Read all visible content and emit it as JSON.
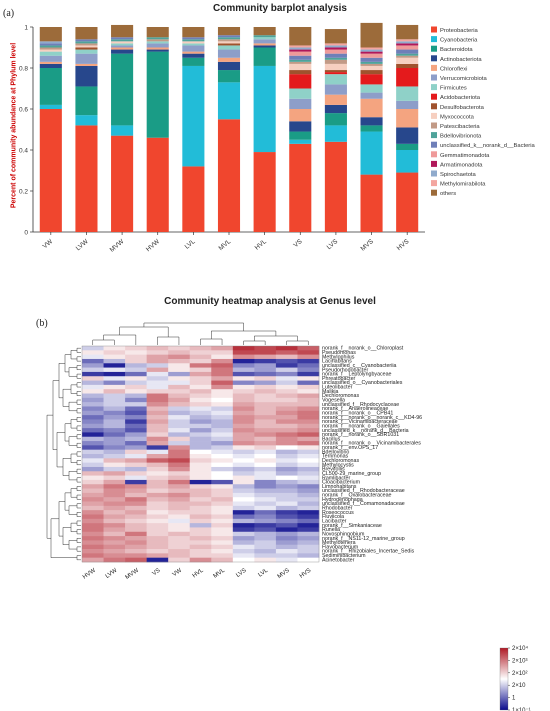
{
  "panel_a_label": "(a)",
  "panel_b_label": "(b)",
  "chart_data": [
    {
      "type": "bar",
      "title": "Community barplot analysis",
      "ylabel": "Percent of community abundance at  Phylum level",
      "xlabel": "",
      "ylim": [
        0,
        1
      ],
      "yticks": [
        0,
        0.2,
        0.4,
        0.6,
        0.8,
        1
      ],
      "legend_position": "right",
      "categories": [
        "VW",
        "LVW",
        "MVW",
        "HVW",
        "LVL",
        "MVL",
        "HVL",
        "VS",
        "LVS",
        "MVS",
        "HVS"
      ],
      "series": [
        {
          "name": "Proteobacteria",
          "color": "#f0462e",
          "values": [
            0.6,
            0.52,
            0.47,
            0.46,
            0.32,
            0.55,
            0.39,
            0.43,
            0.44,
            0.28,
            0.29
          ]
        },
        {
          "name": "Cyanobacteria",
          "color": "#22bcd8",
          "values": [
            0.02,
            0.05,
            0.05,
            0.0,
            0.49,
            0.18,
            0.42,
            0.02,
            0.08,
            0.21,
            0.11
          ]
        },
        {
          "name": "Bacteroidota",
          "color": "#1a9c86",
          "values": [
            0.18,
            0.14,
            0.35,
            0.42,
            0.04,
            0.06,
            0.09,
            0.04,
            0.06,
            0.03,
            0.03
          ]
        },
        {
          "name": "Actinobacteriota",
          "color": "#27478c",
          "values": [
            0.02,
            0.1,
            0.02,
            0.01,
            0.02,
            0.04,
            0.01,
            0.05,
            0.04,
            0.04,
            0.08
          ]
        },
        {
          "name": "Chloroflexi",
          "color": "#f4a480",
          "values": [
            0.01,
            0.01,
            0.01,
            0.01,
            0.01,
            0.02,
            0.01,
            0.06,
            0.05,
            0.09,
            0.09
          ]
        },
        {
          "name": "Verrucomicrobiota",
          "color": "#8d9ec9",
          "values": [
            0.03,
            0.05,
            0.01,
            0.02,
            0.03,
            0.04,
            0.02,
            0.05,
            0.05,
            0.03,
            0.04
          ]
        },
        {
          "name": "Firmicutes",
          "color": "#8fd1c8",
          "values": [
            0.02,
            0.02,
            0.01,
            0.01,
            0.01,
            0.02,
            0.01,
            0.05,
            0.05,
            0.04,
            0.07
          ]
        },
        {
          "name": "Acidobacteriota",
          "color": "#e41a1c",
          "values": [
            0.0,
            0.0,
            0.0,
            0.0,
            0.0,
            0.0,
            0.0,
            0.07,
            0.01,
            0.05,
            0.09
          ]
        },
        {
          "name": "Desulfobacterota",
          "color": "#a0522d",
          "values": [
            0.0,
            0.01,
            0.0,
            0.0,
            0.0,
            0.01,
            0.0,
            0.02,
            0.01,
            0.02,
            0.02
          ]
        },
        {
          "name": "Myxococcota",
          "color": "#f6cfc0",
          "values": [
            0.01,
            0.01,
            0.01,
            0.0,
            0.01,
            0.01,
            0.0,
            0.03,
            0.03,
            0.02,
            0.03
          ]
        },
        {
          "name": "Patescibacteria",
          "color": "#c29a86",
          "values": [
            0.01,
            0.01,
            0.0,
            0.01,
            0.0,
            0.01,
            0.0,
            0.01,
            0.02,
            0.01,
            0.01
          ]
        },
        {
          "name": "Bdellovibrionota",
          "color": "#4fa39a",
          "values": [
            0.01,
            0.01,
            0.01,
            0.01,
            0.01,
            0.01,
            0.01,
            0.01,
            0.01,
            0.01,
            0.01
          ]
        },
        {
          "name": "unclassified_k__norank_d__Bacteria",
          "color": "#6f7fb8",
          "values": [
            0.01,
            0.01,
            0.01,
            0.0,
            0.01,
            0.01,
            0.0,
            0.02,
            0.02,
            0.02,
            0.02
          ]
        },
        {
          "name": "Gemmatimonadota",
          "color": "#ef9a9a",
          "values": [
            0.0,
            0.0,
            0.0,
            0.0,
            0.0,
            0.0,
            0.0,
            0.02,
            0.02,
            0.02,
            0.02
          ]
        },
        {
          "name": "Armatimonadota",
          "color": "#b0185a",
          "values": [
            0.0,
            0.0,
            0.0,
            0.0,
            0.0,
            0.0,
            0.0,
            0.01,
            0.01,
            0.01,
            0.01
          ]
        },
        {
          "name": "Spirochaetota",
          "color": "#8faacc",
          "values": [
            0.01,
            0.0,
            0.0,
            0.0,
            0.0,
            0.0,
            0.0,
            0.01,
            0.01,
            0.01,
            0.01
          ]
        },
        {
          "name": "Methylomirabilota",
          "color": "#f3a6a0",
          "values": [
            0.0,
            0.0,
            0.0,
            0.0,
            0.0,
            0.0,
            0.0,
            0.01,
            0.01,
            0.01,
            0.01
          ]
        },
        {
          "name": "others",
          "color": "#9c6b3a",
          "values": [
            0.07,
            0.06,
            0.06,
            0.05,
            0.05,
            0.04,
            0.04,
            0.09,
            0.07,
            0.12,
            0.07
          ]
        }
      ]
    },
    {
      "type": "heatmap",
      "title": "Community heatmap analysis at  Genus level",
      "columns": [
        "HVW",
        "LVW",
        "MVW",
        "VS",
        "VW",
        "HVL",
        "MVL",
        "LVS",
        "LVL",
        "MVS",
        "HVS"
      ],
      "rows": [
        "norank_f__norank_o__Chloroplast",
        "Pseudomonas",
        "Methylophilus",
        "Lacihabitans",
        "unclassified_c__Cyanobacteriia",
        "Pseudorhodobacter",
        "norank_f__Leptolyngbyaceae",
        "Phreatobacter",
        "unclassified_o__Cyanobacteriales",
        "Luteolibacter",
        "Malikia",
        "Dechloromonas",
        "Vogesella",
        "unclassified_f__Rhodocyclaceae",
        "norank_f__Anaerolineaceae",
        "norank_f__norank_o__CPB41",
        "norank_f__norank_o__norank_c__KD4-96",
        "norank_f__Vicinamibacteraceae",
        "norank_f__norank_o__Gaiellales",
        "unclassified_k__norank_d__Bacteria",
        "norank_f__norank_o__SBR1031",
        "Bacillus",
        "norank_f__norank_o__Vicinamibacterales",
        "norank_f__env.OPS_17",
        "Bdellovibrio",
        "Terrimonas",
        "Dechloromonas",
        "Methylocystis",
        "Brevifollis",
        "CL500-29_marine_group",
        "Ramlibacter",
        "Cloacibacterium",
        "Limnohabitans",
        "unclassified_f__Rhodobacteraceae",
        "norank_f__Oxalobacteraceae",
        "Hydrogenophaga",
        "unclassified_f__Comamonadaceae",
        "Rhodobacter",
        "Roseococcus",
        "Fluviicola",
        "Lacibacter",
        "norank_f__Simkaniaceae",
        "Runella",
        "Novosphingobium",
        "norank_f__NS11-12_marine_group",
        "Methylotenera",
        "Flavobacterium",
        "norank_f__Rhizobiales_Incertae_Sedis",
        "Sediminibacterium",
        "Acinetobacter"
      ],
      "legend_labels": [
        "2×10⁴",
        "2×10³",
        "2×10²",
        "2×10",
        "1",
        "1×10⁻¹"
      ],
      "colors": {
        "low": "#0a0a8c",
        "mid": "#ffffff",
        "high": "#b01a26"
      },
      "values": [
        [
          -0.2,
          0.1,
          0.2,
          0.3,
          0.2,
          0.3,
          0.4,
          0.9,
          0.8,
          0.9,
          0.7
        ],
        [
          0.1,
          0.2,
          0.1,
          0.2,
          0.3,
          0.2,
          0.2,
          0.8,
          0.8,
          0.7,
          0.8
        ],
        [
          -0.1,
          0.1,
          0.2,
          0.4,
          0.5,
          0.3,
          0.1,
          0.5,
          0.4,
          0.3,
          0.5
        ],
        [
          -0.6,
          -0.3,
          0.2,
          0.4,
          0.3,
          0.2,
          0.5,
          -0.9,
          -0.8,
          -0.7,
          -0.8
        ],
        [
          -0.4,
          -0.9,
          -0.3,
          -0.2,
          0.1,
          0.6,
          0.7,
          -0.5,
          -0.4,
          -0.8,
          -0.6
        ],
        [
          -0.2,
          -0.1,
          -0.2,
          0.4,
          0.1,
          0.2,
          0.6,
          -0.3,
          -0.4,
          -0.2,
          -0.5
        ],
        [
          -0.8,
          -0.9,
          -0.6,
          -0.1,
          -0.4,
          0.4,
          0.6,
          -0.7,
          -0.6,
          -0.5,
          -0.8
        ],
        [
          0.2,
          -0.1,
          0.1,
          -0.2,
          0.1,
          0.2,
          0.4,
          0.1,
          0.2,
          -0.1,
          0.1
        ],
        [
          -0.3,
          -0.5,
          -0.2,
          -0.1,
          -0.1,
          0.2,
          0.7,
          -0.5,
          -0.4,
          -0.2,
          -0.6
        ],
        [
          -0.1,
          0.1,
          0.2,
          -0.1,
          0.3,
          0.1,
          0.5,
          0.1,
          0.2,
          0.1,
          0.2
        ],
        [
          0.1,
          0.3,
          0.1,
          0.2,
          0.2,
          0.3,
          0.1,
          0.2,
          0.3,
          0.2,
          0.1
        ],
        [
          -0.3,
          -0.2,
          -0.3,
          0.6,
          0.3,
          0.2,
          0.1,
          0.3,
          0.2,
          0.3,
          0.4
        ],
        [
          -0.4,
          -0.2,
          -0.5,
          0.6,
          0.4,
          0.1,
          0.0,
          0.3,
          0.2,
          0.2,
          0.3
        ],
        [
          -0.3,
          -0.2,
          -0.2,
          0.5,
          0.3,
          0.2,
          0.1,
          0.4,
          0.3,
          0.3,
          0.3
        ],
        [
          -0.5,
          -0.3,
          -0.6,
          0.3,
          -0.2,
          -0.1,
          -0.2,
          0.5,
          0.3,
          0.4,
          0.5
        ],
        [
          -0.4,
          -0.5,
          -0.7,
          0.4,
          -0.3,
          -0.2,
          -0.1,
          0.4,
          0.3,
          0.5,
          0.6
        ],
        [
          -0.6,
          -0.4,
          -0.5,
          0.3,
          -0.1,
          -0.3,
          -0.2,
          0.5,
          0.4,
          0.4,
          0.6
        ],
        [
          -0.5,
          -0.3,
          -0.8,
          0.4,
          -0.2,
          -0.4,
          -0.3,
          0.5,
          0.3,
          0.5,
          0.5
        ],
        [
          -0.4,
          -0.3,
          -0.6,
          0.3,
          -0.2,
          -0.2,
          -0.3,
          0.4,
          0.3,
          0.3,
          0.4
        ],
        [
          -0.6,
          -0.5,
          -0.7,
          0.3,
          -0.1,
          -0.4,
          -0.2,
          0.5,
          0.4,
          0.4,
          0.5
        ],
        [
          -0.9,
          -0.6,
          -0.4,
          0.2,
          -0.3,
          -0.2,
          -0.1,
          0.4,
          0.5,
          0.6,
          0.7
        ],
        [
          -0.3,
          -0.4,
          -0.3,
          0.5,
          0.2,
          -0.3,
          -0.2,
          0.4,
          0.3,
          0.5,
          0.4
        ],
        [
          -0.5,
          -0.4,
          -0.6,
          0.4,
          -0.2,
          -0.3,
          -0.4,
          0.5,
          0.4,
          0.5,
          0.6
        ],
        [
          -0.7,
          -0.5,
          -0.4,
          -0.8,
          0.5,
          -0.3,
          -0.2,
          0.1,
          0.2,
          0.0,
          0.1
        ],
        [
          -0.2,
          -0.3,
          0.2,
          -0.1,
          0.6,
          0.0,
          -0.1,
          -0.2,
          -0.1,
          -0.3,
          -0.2
        ],
        [
          -0.3,
          -0.2,
          -0.1,
          0.4,
          0.6,
          0.1,
          0.0,
          -0.1,
          0.0,
          -0.2,
          -0.1
        ],
        [
          -0.1,
          0.3,
          0.4,
          0.7,
          0.8,
          0.2,
          0.1,
          0.0,
          0.1,
          -0.1,
          0.0
        ],
        [
          -0.2,
          0.1,
          0.2,
          0.3,
          0.6,
          0.1,
          0.0,
          -0.1,
          0.0,
          -0.2,
          -0.1
        ],
        [
          -0.4,
          -0.2,
          -0.3,
          0.2,
          0.5,
          0.1,
          -0.2,
          -0.3,
          -0.2,
          -0.4,
          -0.3
        ],
        [
          0.3,
          0.4,
          0.2,
          0.1,
          0.2,
          0.1,
          0.0,
          -0.2,
          -0.1,
          -0.3,
          -0.2
        ],
        [
          0.1,
          0.2,
          -0.1,
          0.2,
          0.3,
          0.1,
          0.0,
          0.1,
          -0.1,
          0.0,
          -0.1
        ],
        [
          0.2,
          0.4,
          -0.8,
          0.3,
          0.6,
          -0.9,
          -0.7,
          0.1,
          -0.5,
          -0.3,
          -0.2
        ],
        [
          0.4,
          0.6,
          0.5,
          0.3,
          0.4,
          0.2,
          0.1,
          -0.3,
          -0.5,
          -0.4,
          -0.5
        ],
        [
          0.3,
          0.5,
          0.4,
          0.2,
          0.3,
          0.3,
          0.2,
          -0.2,
          -0.3,
          -0.3,
          -0.4
        ],
        [
          0.4,
          0.5,
          0.3,
          0.4,
          0.5,
          0.3,
          0.2,
          -0.1,
          -0.2,
          -0.2,
          -0.3
        ],
        [
          0.5,
          0.4,
          0.6,
          0.3,
          0.4,
          0.2,
          0.3,
          0.0,
          -0.1,
          -0.2,
          -0.2
        ],
        [
          0.4,
          0.5,
          0.5,
          0.2,
          0.3,
          0.3,
          0.2,
          -0.1,
          -0.2,
          -0.1,
          -0.3
        ],
        [
          0.3,
          0.4,
          0.3,
          0.2,
          0.3,
          0.2,
          0.1,
          -0.2,
          -0.1,
          -0.3,
          -0.2
        ],
        [
          0.5,
          0.3,
          0.4,
          0.1,
          0.2,
          0.2,
          0.1,
          -0.9,
          -0.6,
          -0.8,
          -0.9
        ],
        [
          0.6,
          0.4,
          0.3,
          0.2,
          0.1,
          0.3,
          0.2,
          -0.6,
          -0.5,
          -0.7,
          -0.8
        ],
        [
          0.5,
          0.3,
          0.2,
          0.1,
          -0.1,
          0.2,
          0.1,
          -0.3,
          -0.4,
          -0.5,
          -0.6
        ],
        [
          0.6,
          0.5,
          0.3,
          0.2,
          0.1,
          -0.3,
          0.2,
          -0.9,
          -0.8,
          -0.7,
          -0.9
        ],
        [
          0.6,
          0.4,
          0.3,
          0.2,
          0.1,
          0.2,
          0.1,
          -0.8,
          -0.7,
          -0.9,
          -0.8
        ],
        [
          0.5,
          0.3,
          0.6,
          0.2,
          0.3,
          0.2,
          0.1,
          -0.2,
          -0.3,
          -0.4,
          -0.3
        ],
        [
          0.6,
          0.5,
          0.4,
          0.3,
          0.2,
          0.3,
          0.2,
          -0.4,
          -0.3,
          -0.5,
          -0.4
        ],
        [
          0.5,
          0.4,
          0.5,
          0.3,
          0.2,
          0.2,
          0.1,
          -0.3,
          -0.2,
          -0.4,
          -0.3
        ],
        [
          0.6,
          0.5,
          0.4,
          0.3,
          0.2,
          0.3,
          0.2,
          -0.1,
          -0.2,
          -0.3,
          -0.2
        ],
        [
          0.5,
          0.4,
          0.3,
          0.2,
          0.3,
          0.2,
          0.1,
          -0.2,
          -0.3,
          -0.1,
          -0.2
        ],
        [
          0.6,
          0.5,
          0.5,
          0.4,
          0.3,
          0.2,
          0.2,
          -0.1,
          -0.2,
          -0.2,
          -0.3
        ],
        [
          0.4,
          0.6,
          0.7,
          -0.9,
          0.2,
          0.5,
          0.3,
          0.0,
          0.1,
          -0.1,
          0.0
        ]
      ]
    }
  ]
}
